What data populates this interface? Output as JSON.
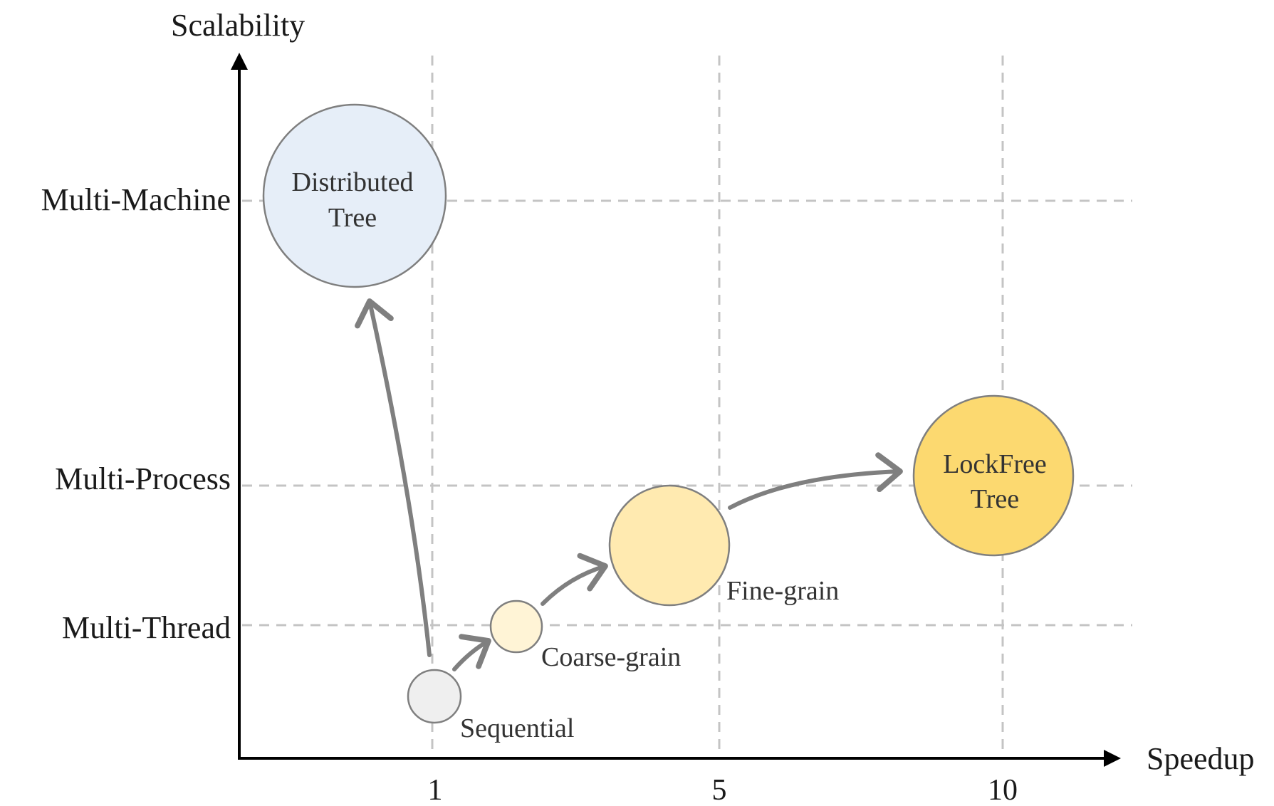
{
  "axes": {
    "y_title": "Scalability",
    "x_title": "Speedup",
    "y_levels": [
      "Multi-Machine",
      "Multi-Process",
      "Multi-Thread"
    ],
    "x_ticks": [
      "1",
      "5",
      "10"
    ]
  },
  "nodes": {
    "sequential": {
      "label": "Sequential",
      "color": "#efefef"
    },
    "coarse_grain": {
      "label": "Coarse-grain",
      "color": "#fff4d6"
    },
    "fine_grain": {
      "label": "Fine-grain",
      "color": "#ffeab0"
    },
    "lockfree": {
      "label_line1": "LockFree",
      "label_line2": "Tree",
      "color": "#fcd970"
    },
    "distributed": {
      "label_line1": "Distributed",
      "label_line2": "Tree",
      "color": "#e6eef8"
    }
  },
  "colors": {
    "axis": "#000000",
    "grid": "#c4c4c4",
    "arrow": "#7f7f7f",
    "bubble_outline": "#7f7f7f"
  },
  "edges": [
    {
      "from": "Sequential",
      "to": "Distributed Tree"
    },
    {
      "from": "Sequential",
      "to": "Coarse-grain"
    },
    {
      "from": "Coarse-grain",
      "to": "Fine-grain"
    },
    {
      "from": "Fine-grain",
      "to": "LockFree Tree"
    }
  ]
}
